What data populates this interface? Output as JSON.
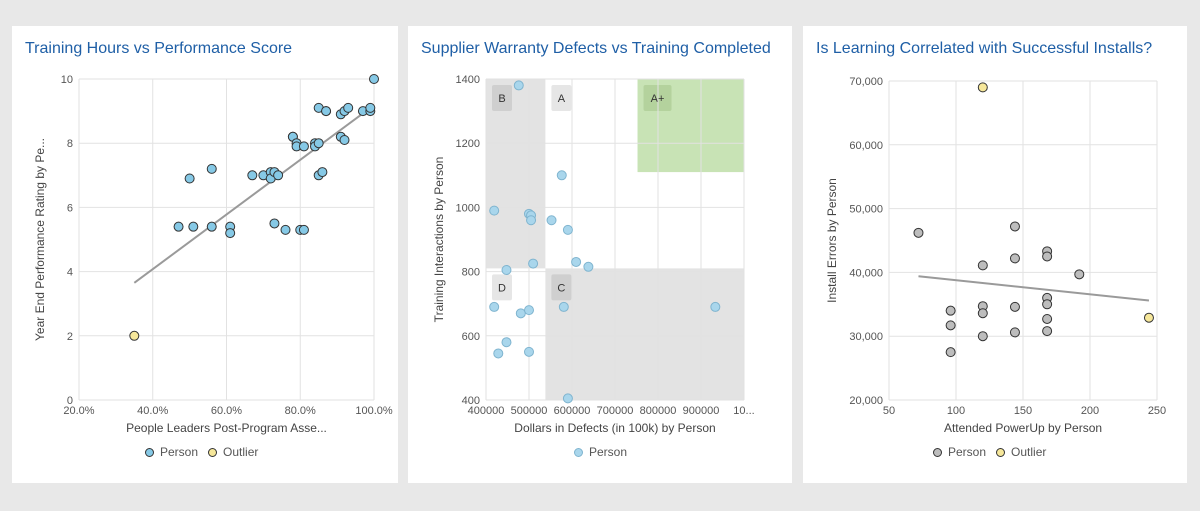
{
  "colors": {
    "title": "#1f5fa6",
    "person_blue": "#86c9e6",
    "person_light_blue": "#a9d6ec",
    "person_gray": "#bdbdbd",
    "outlier": "#f6e79a",
    "trend": "#9a9a9a",
    "region_gray": "#e3e3e3",
    "region_green": "#c8e3b5"
  },
  "chart_data": [
    {
      "type": "scatter",
      "title": "Training Hours vs Performance Score",
      "xlabel": "People Leaders Post-Program Asse...",
      "ylabel": "Year End Performance Rating by Pe...",
      "xlim": [
        20,
        100
      ],
      "ylim": [
        0,
        10
      ],
      "x_ticks": [
        "20.0%",
        "40.0%",
        "60.0%",
        "80.0%",
        "100.0%"
      ],
      "y_ticks": [
        "0",
        "2",
        "4",
        "6",
        "8",
        "10"
      ],
      "grid": true,
      "legend": [
        {
          "name": "Person",
          "color": "#86c9e6"
        },
        {
          "name": "Outlier",
          "color": "#f6e79a"
        }
      ],
      "series": [
        {
          "name": "Person",
          "points": [
            [
              47,
              5.4
            ],
            [
              50,
              6.9
            ],
            [
              51,
              5.4
            ],
            [
              56,
              7.2
            ],
            [
              56,
              5.4
            ],
            [
              61,
              5.4
            ],
            [
              61,
              5.2
            ],
            [
              67,
              7.0
            ],
            [
              70,
              7.0
            ],
            [
              72,
              7.1
            ],
            [
              72,
              6.9
            ],
            [
              73,
              7.1
            ],
            [
              73,
              5.5
            ],
            [
              74,
              7.0
            ],
            [
              76,
              5.3
            ],
            [
              78,
              8.2
            ],
            [
              78,
              8.2
            ],
            [
              79,
              8.0
            ],
            [
              79,
              7.9
            ],
            [
              80,
              5.3
            ],
            [
              81,
              5.3
            ],
            [
              81,
              7.9
            ],
            [
              84,
              8.0
            ],
            [
              84,
              7.9
            ],
            [
              85,
              8.0
            ],
            [
              85,
              7.0
            ],
            [
              86,
              7.1
            ],
            [
              85,
              9.1
            ],
            [
              87,
              9.0
            ],
            [
              87,
              9.0
            ],
            [
              91,
              8.2
            ],
            [
              91,
              8.9
            ],
            [
              92,
              9.0
            ],
            [
              92,
              8.1
            ],
            [
              93,
              9.1
            ],
            [
              97,
              9.0
            ],
            [
              99,
              9.0
            ],
            [
              99,
              9.1
            ],
            [
              100,
              10.0
            ]
          ]
        },
        {
          "name": "Outlier",
          "points": [
            [
              35,
              2.0
            ]
          ]
        }
      ],
      "trend_line": [
        [
          35,
          3.65
        ],
        [
          99,
          9.1
        ]
      ]
    },
    {
      "type": "scatter",
      "title": "Supplier Warranty Defects vs Training Completed",
      "xlabel": "Dollars in Defects (in 100k) by Person",
      "ylabel": "Training Interactions by Person",
      "xlim": [
        400000,
        1030000
      ],
      "ylim": [
        400,
        1400
      ],
      "x_ticks": [
        "400000",
        "500000",
        "600000",
        "700000",
        "800000",
        "900000",
        "10..."
      ],
      "y_ticks": [
        "400",
        "600",
        "800",
        "1000",
        "1200",
        "1400"
      ],
      "grid": true,
      "legend": [
        {
          "name": "Person",
          "color": "#a9d6ec"
        }
      ],
      "regions": [
        {
          "label": "B",
          "x": [
            400000,
            545000
          ],
          "y": [
            810,
            1400
          ],
          "fill": "gray"
        },
        {
          "label": "A",
          "x": [
            545000,
            770000
          ],
          "y": [
            810,
            1400
          ],
          "fill": "none"
        },
        {
          "label": "A+",
          "x": [
            770000,
            1030000
          ],
          "y": [
            1110,
            1400
          ],
          "fill": "green"
        },
        {
          "label": "D",
          "x": [
            400000,
            545000
          ],
          "y": [
            400,
            810
          ],
          "fill": "none"
        },
        {
          "label": "C",
          "x": [
            545000,
            1030000
          ],
          "y": [
            400,
            810
          ],
          "fill": "gray"
        }
      ],
      "series": [
        {
          "name": "Person",
          "points": [
            [
              420000,
              990
            ],
            [
              480000,
              1380
            ],
            [
              505000,
              980
            ],
            [
              510000,
              975
            ],
            [
              510000,
              960
            ],
            [
              515000,
              825
            ],
            [
              450000,
              805
            ],
            [
              420000,
              690
            ],
            [
              430000,
              545
            ],
            [
              450000,
              580
            ],
            [
              485000,
              670
            ],
            [
              505000,
              680
            ],
            [
              505000,
              550
            ],
            [
              560000,
              960
            ],
            [
              585000,
              1100
            ],
            [
              600000,
              930
            ],
            [
              620000,
              830
            ],
            [
              650000,
              815
            ],
            [
              590000,
              690
            ],
            [
              600000,
              405
            ],
            [
              960000,
              690
            ]
          ]
        }
      ]
    },
    {
      "type": "scatter",
      "title": "Is Learning Correlated with Successful Installs?",
      "xlabel": "Attended PowerUp by Person",
      "ylabel": "Install Errors by Person",
      "xlim": [
        50,
        250
      ],
      "ylim": [
        20000,
        70000
      ],
      "x_ticks": [
        "50",
        "100",
        "150",
        "200",
        "250"
      ],
      "y_ticks": [
        "20,000",
        "30,000",
        "40,000",
        "50,000",
        "60,000",
        "70,000"
      ],
      "grid": true,
      "legend": [
        {
          "name": "Person",
          "color": "#bdbdbd"
        },
        {
          "name": "Outlier",
          "color": "#f6e79a"
        }
      ],
      "series": [
        {
          "name": "Person",
          "points": [
            [
              72,
              46200
            ],
            [
              96,
              34000
            ],
            [
              96,
              31700
            ],
            [
              96,
              27500
            ],
            [
              120,
              41100
            ],
            [
              120,
              34700
            ],
            [
              120,
              33600
            ],
            [
              120,
              30000
            ],
            [
              144,
              47200
            ],
            [
              144,
              42200
            ],
            [
              144,
              34600
            ],
            [
              144,
              30600
            ],
            [
              168,
              43300
            ],
            [
              168,
              42500
            ],
            [
              168,
              36000
            ],
            [
              168,
              35000
            ],
            [
              168,
              32700
            ],
            [
              168,
              30800
            ],
            [
              192,
              39700
            ]
          ]
        },
        {
          "name": "Outlier",
          "points": [
            [
              120,
              69000
            ],
            [
              244,
              32900
            ]
          ]
        }
      ],
      "trend_line": [
        [
          72,
          39400
        ],
        [
          244,
          35600
        ]
      ]
    }
  ]
}
